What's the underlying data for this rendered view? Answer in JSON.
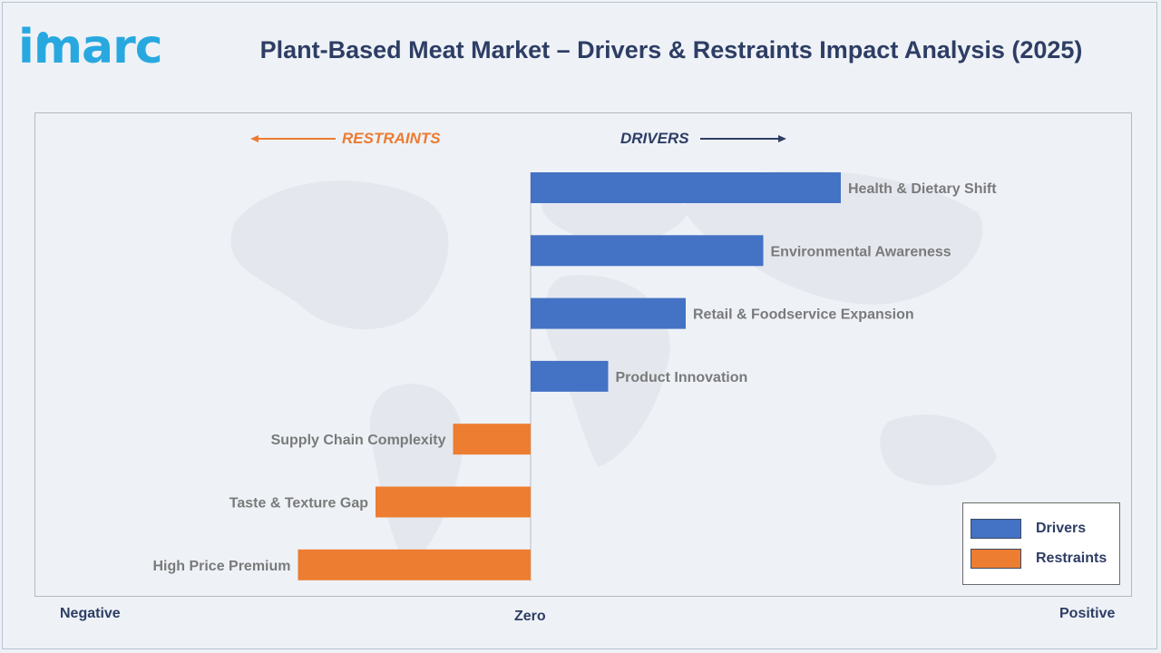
{
  "brand": {
    "logo_text": "imarc"
  },
  "header": {
    "title": "Plant-Based Meat Market – Drivers & Restraints Impact Analysis (2025)"
  },
  "direction_labels": {
    "restraints": "RESTRAINTS",
    "drivers": "DRIVERS"
  },
  "axis": {
    "negative": "Negative",
    "zero": "Zero",
    "positive": "Positive"
  },
  "legend": [
    {
      "label": "Drivers",
      "color": "#4472c4"
    },
    {
      "label": "Restraints",
      "color": "#ed7d31"
    }
  ],
  "chart_data": {
    "type": "bar",
    "orientation": "horizontal",
    "title": "Plant-Based Meat Market – Drivers & Restraints Impact Analysis (2025)",
    "xlabel_left": "Negative",
    "xlabel_center": "Zero",
    "xlabel_right": "Positive",
    "categories": [
      "Health & Dietary Shift",
      "Environmental Awareness",
      "Retail & Foodservice Expansion",
      "Product Innovation",
      "Supply Chain Complexity",
      "Taste & Texture Gap",
      "High Price Premium"
    ],
    "series": [
      {
        "name": "Drivers",
        "color": "#4472c4",
        "values": [
          4,
          3,
          2,
          1,
          null,
          null,
          null
        ]
      },
      {
        "name": "Restraints",
        "color": "#ed7d31",
        "values": [
          null,
          null,
          null,
          null,
          -1,
          -2,
          -3
        ]
      }
    ],
    "xlim": [
      -6.4,
      7.7
    ],
    "grid": false,
    "legend_position": "bottom-right"
  }
}
